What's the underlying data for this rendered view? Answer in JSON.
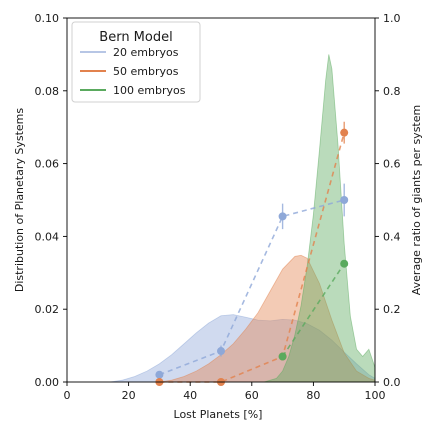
{
  "chart_data": {
    "type": "area",
    "xlabel": "Lost Planets [%]",
    "ylabel": "Distribution of Planetary Systems",
    "y2label": "Average ratio of giants per system",
    "xlim": [
      0,
      100
    ],
    "ylim": [
      0,
      0.1
    ],
    "y2lim": [
      0,
      1.0
    ],
    "x_ticks": [
      "0",
      "20",
      "40",
      "60",
      "80",
      "100"
    ],
    "y_ticks": [
      "0.00",
      "0.02",
      "0.04",
      "0.06",
      "0.08",
      "0.10"
    ],
    "y2_ticks": [
      "0.0",
      "0.2",
      "0.4",
      "0.6",
      "0.8",
      "1.0"
    ],
    "grid": false,
    "legend": {
      "title": "Bern Model",
      "position": "top-left",
      "entries": [
        "20 embryos",
        "50 embryos",
        "100 embryos"
      ]
    },
    "series": [
      {
        "name": "20 embryos",
        "color": "#8ea8d8",
        "density": {
          "x": [
            14,
            18,
            22,
            26,
            30,
            34,
            38,
            42,
            46,
            50,
            54,
            58,
            62,
            66,
            70,
            74,
            78,
            82,
            86,
            90,
            94,
            98,
            100
          ],
          "y": [
            0.0,
            0.0005,
            0.0015,
            0.003,
            0.005,
            0.0075,
            0.0105,
            0.0135,
            0.0162,
            0.0182,
            0.0185,
            0.0178,
            0.017,
            0.0168,
            0.0172,
            0.017,
            0.016,
            0.0142,
            0.0115,
            0.0082,
            0.005,
            0.002,
            0.001
          ]
        },
        "ratio_points": {
          "x": [
            30,
            50,
            70,
            90
          ],
          "y": [
            0.02,
            0.085,
            0.455,
            0.5
          ],
          "yerr": [
            0.01,
            0.015,
            0.035,
            0.045
          ]
        }
      },
      {
        "name": "50 embryos",
        "color": "#e2824e",
        "density": {
          "x": [
            30,
            34,
            38,
            42,
            46,
            50,
            54,
            58,
            62,
            66,
            70,
            74,
            76,
            78,
            82,
            86,
            90,
            94,
            98,
            100
          ],
          "y": [
            0.0,
            0.0005,
            0.0015,
            0.003,
            0.005,
            0.0075,
            0.0105,
            0.0145,
            0.019,
            0.025,
            0.031,
            0.0345,
            0.0348,
            0.034,
            0.027,
            0.017,
            0.008,
            0.003,
            0.001,
            0.0005
          ]
        },
        "ratio_points": {
          "x": [
            30,
            50,
            70,
            90
          ],
          "y": [
            0.0,
            0.0,
            0.07,
            0.685
          ],
          "yerr": [
            0.0,
            0.0,
            0.0,
            0.03
          ]
        }
      },
      {
        "name": "100 embryos",
        "color": "#5aaa5e",
        "density": {
          "x": [
            64,
            68,
            70,
            72,
            74,
            76,
            78,
            80,
            82,
            84,
            85,
            86,
            88,
            90,
            92,
            94,
            96,
            98,
            100
          ],
          "y": [
            0.0,
            0.001,
            0.003,
            0.007,
            0.013,
            0.021,
            0.032,
            0.046,
            0.064,
            0.083,
            0.09,
            0.086,
            0.065,
            0.038,
            0.018,
            0.009,
            0.007,
            0.009,
            0.004
          ]
        },
        "ratio_points": {
          "x": [
            70,
            90
          ],
          "y": [
            0.07,
            0.325
          ],
          "yerr": [
            0.0,
            0.0
          ]
        }
      }
    ]
  }
}
